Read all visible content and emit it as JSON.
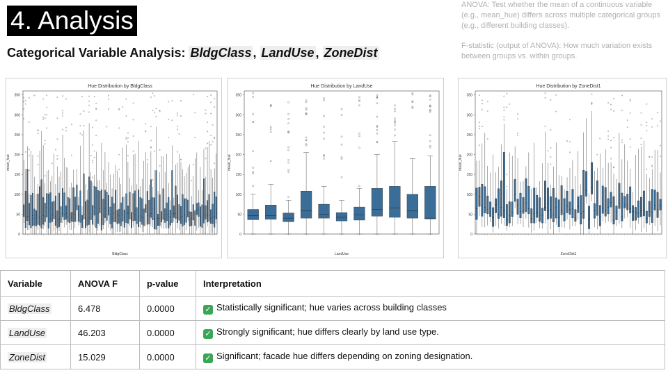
{
  "title": "4. Analysis",
  "subtitle": {
    "prefix": "Categorical Variable Analysis: ",
    "vars": [
      "BldgClass",
      "LandUse",
      "ZoneDist"
    ]
  },
  "notes": [
    "ANOVA: Test whether the mean of a continuous variable (e.g., mean_hue) differs across multiple categorical groups (e.g., different building classes).",
    "F-statistic (output of ANOVA): How much variation exists between groups vs. within groups."
  ],
  "colors": {
    "box": "#3a6e98",
    "title_bg": "#000000",
    "check": "#3aa757"
  },
  "chart_data": [
    {
      "type": "box",
      "title": "Hue Distribution by BldgClass",
      "xlabel": "BldgClass",
      "ylabel": "mean_hue",
      "ylim": [
        0,
        360
      ],
      "yticks": [
        0,
        50,
        100,
        150,
        200,
        250,
        300,
        350
      ],
      "n_groups": 110,
      "median_range": [
        35,
        70
      ]
    },
    {
      "type": "box",
      "title": "Hue Distribution by LandUse",
      "xlabel": "LandUse",
      "ylabel": "mean_hue",
      "ylim": [
        0,
        360
      ],
      "yticks": [
        0,
        50,
        100,
        150,
        200,
        250,
        300,
        350
      ],
      "boxes": [
        {
          "min": 0,
          "q1": 36,
          "median": 46,
          "q3": 62,
          "max": 100
        },
        {
          "min": 0,
          "q1": 37,
          "median": 46,
          "q3": 73,
          "max": 125
        },
        {
          "min": 0,
          "q1": 31,
          "median": 40,
          "q3": 53,
          "max": 85
        },
        {
          "min": 0,
          "q1": 40,
          "median": 58,
          "q3": 108,
          "max": 205
        },
        {
          "min": 0,
          "q1": 40,
          "median": 50,
          "q3": 75,
          "max": 120
        },
        {
          "min": 0,
          "q1": 33,
          "median": 42,
          "q3": 54,
          "max": 85
        },
        {
          "min": 0,
          "q1": 35,
          "median": 48,
          "q3": 68,
          "max": 115
        },
        {
          "min": 0,
          "q1": 45,
          "median": 62,
          "q3": 115,
          "max": 200
        },
        {
          "min": 0,
          "q1": 42,
          "median": 66,
          "q3": 120,
          "max": 233
        },
        {
          "min": 0,
          "q1": 40,
          "median": 58,
          "q3": 100,
          "max": 190
        },
        {
          "min": 0,
          "q1": 38,
          "median": 40,
          "q3": 120,
          "max": 197
        }
      ]
    },
    {
      "type": "box",
      "title": "Hue Distribution by ZoneDist1",
      "xlabel": "ZoneDist1",
      "ylabel": "mean_hue",
      "ylim": [
        0,
        360
      ],
      "yticks": [
        0,
        50,
        100,
        150,
        200,
        250,
        300,
        350
      ],
      "n_groups": 68,
      "median_range": [
        35,
        120
      ]
    }
  ],
  "table": {
    "headers": [
      "Variable",
      "ANOVA F",
      "p-value",
      "Interpretation"
    ],
    "rows": [
      {
        "variable": "BldgClass",
        "f": "6.478",
        "p": "0.0000",
        "interp": "Statistically significant; hue varies across building classes"
      },
      {
        "variable": "LandUse",
        "f": "46.203",
        "p": "0.0000",
        "interp": "Strongly significant; hue differs clearly by land use type."
      },
      {
        "variable": "ZoneDist",
        "f": "15.029",
        "p": "0.0000",
        "interp": "Significant; facade hue differs depending on zoning designation."
      }
    ]
  }
}
